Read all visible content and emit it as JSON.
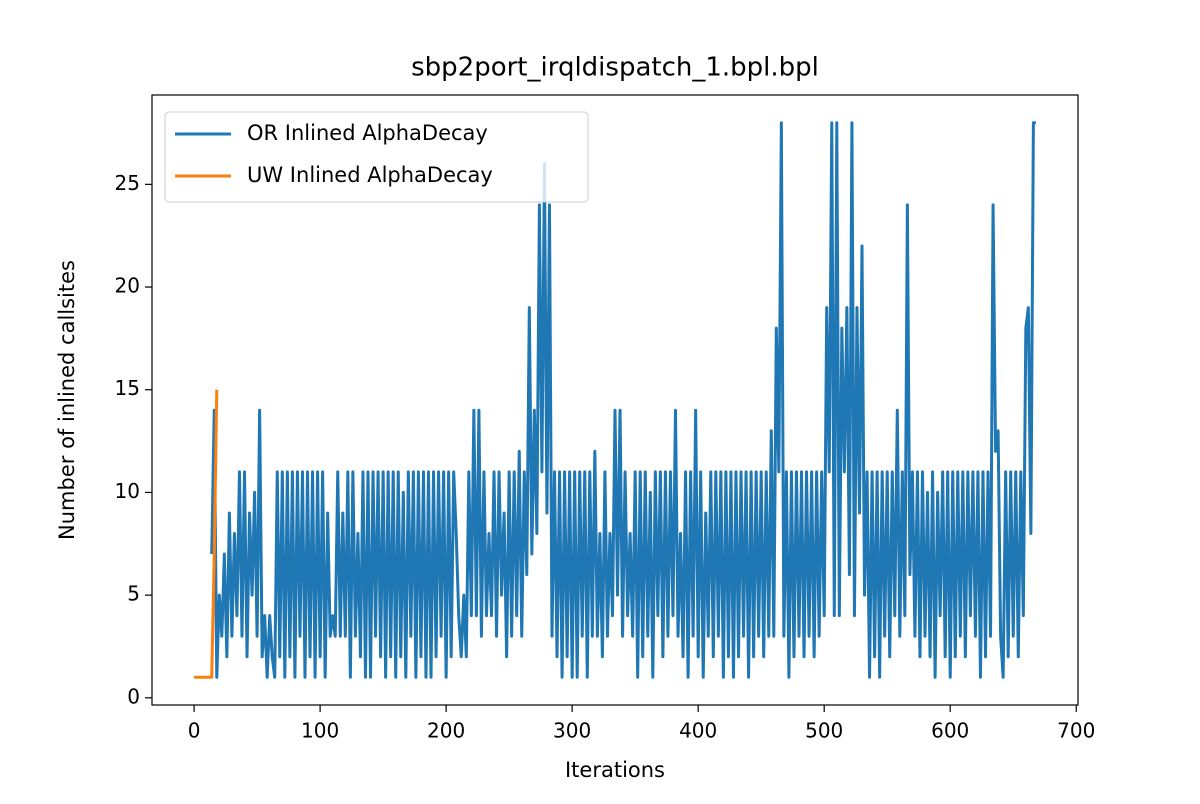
{
  "chart_data": {
    "type": "line",
    "title": "sbp2port_irqldispatch_1.bpl.bpl",
    "xlabel": "Iterations",
    "ylabel": "Number of inlined callsites",
    "xlim": [
      -33.4,
      701.4
    ],
    "ylim": [
      -0.35,
      29.35
    ],
    "xticks": [
      0,
      100,
      200,
      300,
      400,
      500,
      600,
      700
    ],
    "yticks": [
      0,
      5,
      10,
      15,
      20,
      25
    ],
    "grid": false,
    "legend": "upper left",
    "series": [
      {
        "name": "OR Inlined AlphaDecay",
        "color": "#1f77b4",
        "x": [
          14,
          16,
          18,
          20,
          22,
          24,
          26,
          28,
          30,
          32,
          34,
          36,
          38,
          40,
          42,
          44,
          46,
          48,
          50,
          52,
          54,
          56,
          58,
          60,
          62,
          64,
          66,
          68,
          70,
          72,
          74,
          76,
          78,
          80,
          82,
          84,
          86,
          88,
          90,
          92,
          94,
          96,
          98,
          100,
          102,
          104,
          106,
          108,
          110,
          112,
          114,
          116,
          118,
          120,
          122,
          124,
          126,
          128,
          130,
          132,
          134,
          136,
          138,
          140,
          142,
          144,
          146,
          148,
          150,
          152,
          154,
          156,
          158,
          160,
          162,
          164,
          166,
          168,
          170,
          172,
          174,
          176,
          178,
          180,
          182,
          184,
          186,
          188,
          190,
          192,
          194,
          196,
          198,
          200,
          202,
          204,
          206,
          208,
          210,
          212,
          214,
          216,
          218,
          220,
          222,
          224,
          226,
          228,
          230,
          232,
          234,
          236,
          238,
          240,
          242,
          244,
          246,
          248,
          250,
          252,
          254,
          256,
          258,
          260,
          262,
          264,
          266,
          268,
          270,
          272,
          274,
          276,
          278,
          280,
          282,
          284,
          286,
          288,
          290,
          292,
          294,
          296,
          298,
          300,
          302,
          304,
          306,
          308,
          310,
          312,
          314,
          316,
          318,
          320,
          322,
          324,
          326,
          328,
          330,
          332,
          334,
          336,
          338,
          340,
          342,
          344,
          346,
          348,
          350,
          352,
          354,
          356,
          358,
          360,
          362,
          364,
          366,
          368,
          370,
          372,
          374,
          376,
          378,
          380,
          382,
          384,
          386,
          388,
          390,
          392,
          394,
          396,
          398,
          400,
          402,
          404,
          406,
          408,
          410,
          412,
          414,
          416,
          418,
          420,
          422,
          424,
          426,
          428,
          430,
          432,
          434,
          436,
          438,
          440,
          442,
          444,
          446,
          448,
          450,
          452,
          454,
          456,
          458,
          460,
          462,
          464,
          466,
          468,
          470,
          472,
          474,
          476,
          478,
          480,
          482,
          484,
          486,
          488,
          490,
          492,
          494,
          496,
          498,
          500,
          502,
          504,
          506,
          508,
          510,
          512,
          514,
          516,
          518,
          520,
          522,
          524,
          526,
          528,
          530,
          532,
          534,
          536,
          538,
          540,
          542,
          544,
          546,
          548,
          550,
          552,
          554,
          556,
          558,
          560,
          562,
          564,
          566,
          568,
          570,
          572,
          574,
          576,
          578,
          580,
          582,
          584,
          586,
          588,
          590,
          592,
          594,
          596,
          598,
          600,
          602,
          604,
          606,
          608,
          610,
          612,
          614,
          616,
          618,
          620,
          622,
          624,
          626,
          628,
          630,
          632,
          634,
          636,
          638,
          640,
          642,
          644,
          646,
          648,
          650,
          652,
          654,
          656,
          658,
          660,
          662,
          664,
          666,
          668
        ],
        "values": [
          7,
          14,
          1,
          5,
          3,
          7,
          2,
          9,
          3,
          8,
          4,
          11,
          3,
          11,
          2,
          9,
          5,
          10,
          3,
          14,
          2,
          4,
          1,
          4,
          2,
          1,
          11,
          2,
          11,
          1,
          11,
          2,
          11,
          1,
          11,
          3,
          11,
          1,
          11,
          2,
          11,
          1,
          11,
          2,
          11,
          1,
          9,
          3,
          4,
          3,
          11,
          3,
          9,
          3,
          11,
          1,
          11,
          3,
          8,
          2,
          11,
          1,
          11,
          1,
          11,
          3,
          11,
          2,
          11,
          1,
          11,
          2,
          11,
          1,
          11,
          2,
          10,
          1,
          11,
          3,
          11,
          1,
          11,
          2,
          11,
          1,
          11,
          1,
          11,
          2,
          11,
          3,
          11,
          1,
          11,
          2,
          11,
          8,
          4,
          2,
          5,
          2,
          11,
          4,
          14,
          4,
          14,
          3,
          11,
          4,
          8,
          4,
          11,
          3,
          11,
          5,
          9,
          2,
          11,
          3,
          11,
          4,
          12,
          3,
          11,
          6,
          19,
          7,
          14,
          8,
          24,
          11,
          26,
          9,
          24,
          3,
          11,
          2,
          11,
          1,
          11,
          2,
          11,
          1,
          11,
          1,
          11,
          3,
          11,
          1,
          11,
          3,
          12,
          3,
          8,
          2,
          11,
          3,
          8,
          4,
          14,
          5,
          14,
          3,
          11,
          4,
          8,
          3,
          11,
          1,
          11,
          2,
          11,
          3,
          10,
          1,
          11,
          4,
          11,
          2,
          11,
          3,
          11,
          4,
          14,
          3,
          8,
          2,
          11,
          1,
          11,
          3,
          14,
          2,
          11,
          1,
          9,
          3,
          11,
          2,
          11,
          3,
          11,
          1,
          11,
          2,
          11,
          1,
          11,
          2,
          11,
          3,
          11,
          1,
          11,
          2,
          11,
          3,
          11,
          2,
          11,
          3,
          13,
          3,
          18,
          11,
          28,
          3,
          11,
          1,
          11,
          2,
          11,
          3,
          11,
          2,
          11,
          3,
          11,
          2,
          11,
          3,
          11,
          4,
          19,
          11,
          28,
          4,
          28,
          4,
          18,
          11,
          19,
          6,
          28,
          4,
          19,
          9,
          22,
          5,
          11,
          1,
          11,
          2,
          11,
          1,
          11,
          3,
          11,
          2,
          11,
          4,
          14,
          3,
          11,
          4,
          24,
          6,
          11,
          3,
          11,
          2,
          11,
          3,
          10,
          2,
          11,
          1,
          10,
          4,
          11,
          2,
          11,
          1,
          11,
          2,
          11,
          3,
          11,
          2,
          11,
          4,
          11,
          3,
          11,
          1,
          11,
          2,
          11,
          3,
          24,
          12,
          13,
          3,
          1,
          11,
          2,
          11,
          3,
          11,
          2,
          11,
          4,
          18,
          19,
          8,
          28,
          28
        ]
      },
      {
        "name": "UW Inlined AlphaDecay",
        "color": "#ff7f0e",
        "x": [
          0,
          2,
          4,
          6,
          8,
          10,
          12,
          14,
          16,
          18
        ],
        "values": [
          1,
          1,
          1,
          1,
          1,
          1,
          1,
          1,
          7,
          15
        ]
      }
    ]
  }
}
